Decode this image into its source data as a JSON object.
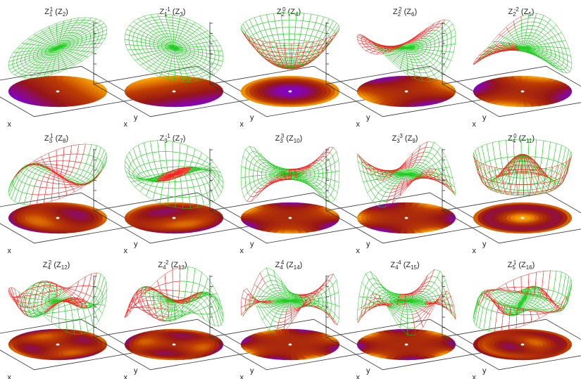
{
  "chart_data": [
    {
      "type": "surface3d",
      "title": [
        {
          "text": "Z"
        },
        {
          "text": "1",
          "pos": "sub"
        },
        {
          "text": "1",
          "pos": "sup"
        },
        {
          "text": " (Z"
        },
        {
          "text": "2",
          "pos": "sub"
        },
        {
          "text": ")"
        }
      ],
      "x_label": "x",
      "y_label": "y"
    },
    {
      "type": "surface3d",
      "title": [
        {
          "text": "Z"
        },
        {
          "text": "1",
          "pos": "sub"
        },
        {
          "text": "-1",
          "pos": "sup"
        },
        {
          "text": " (Z"
        },
        {
          "text": "3",
          "pos": "sub"
        },
        {
          "text": ")"
        }
      ],
      "x_label": "x",
      "y_label": "y"
    },
    {
      "type": "surface3d",
      "title": [
        {
          "text": "Z"
        },
        {
          "text": "2",
          "pos": "sub"
        },
        {
          "text": "0",
          "pos": "sup"
        },
        {
          "text": " (Z"
        },
        {
          "text": "4",
          "pos": "sub"
        },
        {
          "text": ")"
        }
      ],
      "x_label": "x",
      "y_label": "y"
    },
    {
      "type": "surface3d",
      "title": [
        {
          "text": "Z"
        },
        {
          "text": "2",
          "pos": "sub"
        },
        {
          "text": "2",
          "pos": "sup"
        },
        {
          "text": " (Z"
        },
        {
          "text": "6",
          "pos": "sub"
        },
        {
          "text": ")"
        }
      ],
      "x_label": "x",
      "y_label": "y"
    },
    {
      "type": "surface3d",
      "title": [
        {
          "text": "Z"
        },
        {
          "text": "2",
          "pos": "sub"
        },
        {
          "text": "-2",
          "pos": "sup"
        },
        {
          "text": " (Z"
        },
        {
          "text": "5",
          "pos": "sub"
        },
        {
          "text": ")"
        }
      ],
      "x_label": "x",
      "y_label": "y"
    },
    {
      "type": "surface3d",
      "title": [
        {
          "text": "Z"
        },
        {
          "text": "3",
          "pos": "sub"
        },
        {
          "text": "1",
          "pos": "sup"
        },
        {
          "text": " (Z"
        },
        {
          "text": "8",
          "pos": "sub"
        },
        {
          "text": ")"
        }
      ],
      "x_label": "x",
      "y_label": "y"
    },
    {
      "type": "surface3d",
      "title": [
        {
          "text": "Z"
        },
        {
          "text": "3",
          "pos": "sub"
        },
        {
          "text": "-1",
          "pos": "sup"
        },
        {
          "text": " (Z"
        },
        {
          "text": "7",
          "pos": "sub"
        },
        {
          "text": ")"
        }
      ],
      "x_label": "x",
      "y_label": "y"
    },
    {
      "type": "surface3d",
      "title": [
        {
          "text": "Z"
        },
        {
          "text": "3",
          "pos": "sub"
        },
        {
          "text": "3",
          "pos": "sup"
        },
        {
          "text": " (Z"
        },
        {
          "text": "10",
          "pos": "sub"
        },
        {
          "text": ")"
        }
      ],
      "x_label": "x",
      "y_label": "y"
    },
    {
      "type": "surface3d",
      "title": [
        {
          "text": "Z"
        },
        {
          "text": "3",
          "pos": "sub"
        },
        {
          "text": "-3",
          "pos": "sup"
        },
        {
          "text": " (Z"
        },
        {
          "text": "9",
          "pos": "sub"
        },
        {
          "text": ")"
        }
      ],
      "x_label": "x",
      "y_label": "y"
    },
    {
      "type": "surface3d",
      "title": [
        {
          "text": "Z"
        },
        {
          "text": "4",
          "pos": "sub"
        },
        {
          "text": "0",
          "pos": "sup"
        },
        {
          "text": " (Z"
        },
        {
          "text": "11",
          "pos": "sub"
        },
        {
          "text": ")"
        }
      ],
      "x_label": "x",
      "y_label": "y"
    },
    {
      "type": "surface3d",
      "title": [
        {
          "text": "Z"
        },
        {
          "text": "4",
          "pos": "sub"
        },
        {
          "text": "2",
          "pos": "sup"
        },
        {
          "text": " (Z"
        },
        {
          "text": "12",
          "pos": "sub"
        },
        {
          "text": ")"
        }
      ],
      "x_label": "x",
      "y_label": "y"
    },
    {
      "type": "surface3d",
      "title": [
        {
          "text": "Z"
        },
        {
          "text": "4",
          "pos": "sub"
        },
        {
          "text": "-2",
          "pos": "sup"
        },
        {
          "text": " (Z"
        },
        {
          "text": "13",
          "pos": "sub"
        },
        {
          "text": ")"
        }
      ],
      "x_label": "x",
      "y_label": "y"
    },
    {
      "type": "surface3d",
      "title": [
        {
          "text": "Z"
        },
        {
          "text": "4",
          "pos": "sub"
        },
        {
          "text": "4",
          "pos": "sup"
        },
        {
          "text": " (Z"
        },
        {
          "text": "14",
          "pos": "sub"
        },
        {
          "text": ")"
        }
      ],
      "x_label": "x",
      "y_label": "y"
    },
    {
      "type": "surface3d",
      "title": [
        {
          "text": "Z"
        },
        {
          "text": "4",
          "pos": "sub"
        },
        {
          "text": "-4",
          "pos": "sup"
        },
        {
          "text": " (Z"
        },
        {
          "text": "15",
          "pos": "sub"
        },
        {
          "text": ")"
        }
      ],
      "x_label": "x",
      "y_label": "y"
    },
    {
      "type": "surface3d",
      "title": [
        {
          "text": "Z"
        },
        {
          "text": "5",
          "pos": "sub"
        },
        {
          "text": "1",
          "pos": "sup"
        },
        {
          "text": " (Z"
        },
        {
          "text": "16",
          "pos": "sub"
        },
        {
          "text": ")"
        }
      ],
      "x_label": "x",
      "y_label": "y"
    }
  ]
}
